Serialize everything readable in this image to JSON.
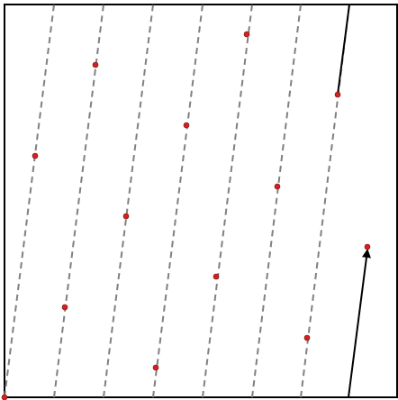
{
  "diagram": {
    "colors": {
      "frame": "#000000",
      "dashed_line": "#808080",
      "point_fill": "#d61f1f",
      "point_stroke": "#7a1111",
      "background": "#ffffff"
    }
  }
}
